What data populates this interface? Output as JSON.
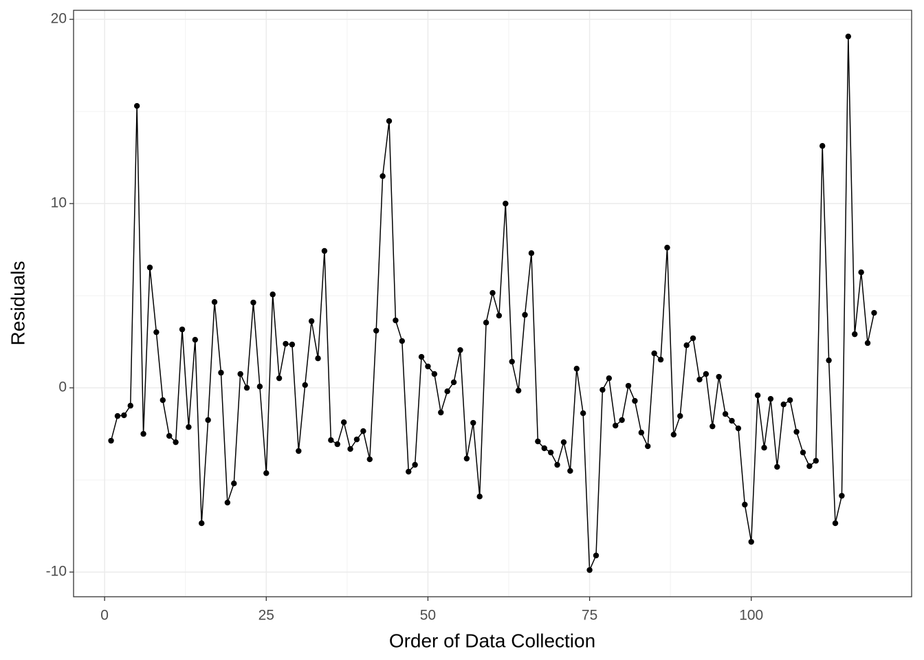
{
  "chart_data": {
    "type": "line",
    "x_label": "Order of Data Collection",
    "y_label": "Residuals",
    "x": [
      1,
      2,
      3,
      4,
      5,
      6,
      7,
      8,
      9,
      10,
      11,
      12,
      13,
      14,
      15,
      16,
      17,
      18,
      19,
      20,
      21,
      22,
      23,
      24,
      25,
      26,
      27,
      28,
      29,
      30,
      31,
      32,
      33,
      34,
      35,
      36,
      37,
      38,
      39,
      40,
      41,
      42,
      43,
      44,
      45,
      46,
      47,
      48,
      49,
      50,
      51,
      52,
      53,
      54,
      55,
      56,
      57,
      58,
      59,
      60,
      61,
      62,
      63,
      64,
      65,
      66,
      67,
      68,
      69,
      70,
      71,
      72,
      73,
      74,
      75,
      76,
      77,
      78,
      79,
      80,
      81,
      82,
      83,
      84,
      85,
      86,
      87,
      88,
      89,
      90,
      91,
      92,
      93,
      94,
      95,
      96,
      97,
      98,
      99,
      100,
      101,
      102,
      103,
      104,
      105,
      106,
      107,
      108,
      109,
      110,
      111,
      112,
      113,
      114,
      115,
      116,
      117,
      118,
      119
    ],
    "series": [
      {
        "color": "#000000",
        "values": [
          -2.87,
          -1.53,
          -1.49,
          -0.97,
          15.3,
          -2.5,
          6.53,
          3.02,
          -0.67,
          -2.61,
          -2.95,
          3.17,
          -2.13,
          2.61,
          -7.35,
          -1.75,
          4.66,
          0.82,
          -6.23,
          -5.19,
          0.75,
          0.0,
          4.63,
          0.07,
          -4.63,
          5.07,
          0.52,
          2.39,
          2.35,
          -3.43,
          0.15,
          3.62,
          1.6,
          7.43,
          -2.84,
          -3.06,
          -1.87,
          -3.32,
          -2.8,
          -2.35,
          -3.88,
          3.1,
          11.49,
          14.48,
          3.66,
          2.54,
          -4.55,
          -4.18,
          1.68,
          1.16,
          0.75,
          -1.34,
          -0.19,
          0.3,
          2.05,
          -3.84,
          -1.9,
          -5.9,
          3.54,
          5.15,
          3.92,
          10.0,
          1.42,
          -0.15,
          3.96,
          7.31,
          -2.91,
          -3.28,
          -3.51,
          -4.18,
          -2.95,
          -4.51,
          1.04,
          -1.38,
          -9.89,
          -9.1,
          -0.11,
          0.52,
          -2.05,
          -1.75,
          0.11,
          -0.71,
          -2.43,
          -3.17,
          1.87,
          1.53,
          7.61,
          -2.54,
          -1.53,
          2.31,
          2.69,
          0.45,
          0.75,
          -2.09,
          0.6,
          -1.42,
          -1.79,
          -2.2,
          -6.34,
          -8.36,
          -0.41,
          -3.25,
          -0.6,
          -4.29,
          -0.9,
          -0.67,
          -2.39,
          -3.51,
          -4.25,
          -3.96,
          13.13,
          1.49,
          -7.35,
          -5.86,
          19.07,
          2.91,
          6.27,
          2.43,
          4.07
        ]
      }
    ],
    "xlim": [
      -4.8,
      124.8
    ],
    "ylim": [
      -11.34,
      20.49
    ],
    "xticks": [
      0,
      25,
      50,
      75,
      100
    ],
    "yticks": [
      -10,
      0,
      10,
      20
    ],
    "grid": true,
    "minor_grid": true,
    "markers": true
  }
}
